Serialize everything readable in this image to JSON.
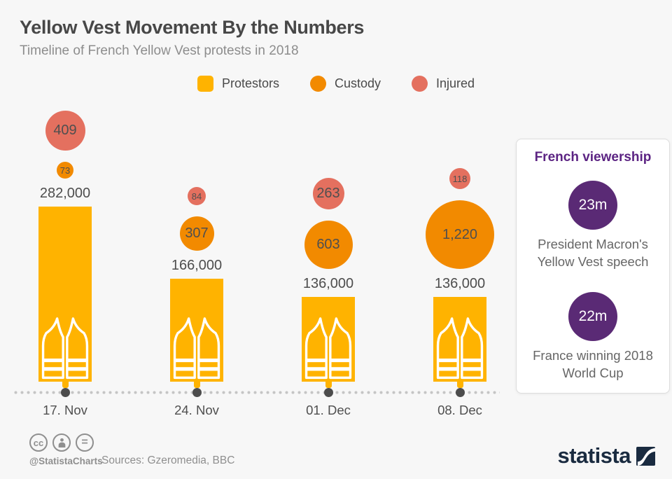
{
  "header": {
    "title": "Yellow Vest Movement By the Numbers",
    "subtitle": "Timeline of French Yellow Vest protests in 2018"
  },
  "legend": {
    "items": [
      {
        "label": "Protestors",
        "color": "#ffb300",
        "shape": "square"
      },
      {
        "label": "Custody",
        "color": "#f28a00",
        "shape": "circle"
      },
      {
        "label": "Injured",
        "color": "#e4705f",
        "shape": "circle"
      }
    ]
  },
  "chart_data": {
    "type": "bar",
    "title": "Timeline of French Yellow Vest protests in 2018",
    "categories": [
      "17. Nov",
      "24. Nov",
      "01. Dec",
      "08. Dec"
    ],
    "series": [
      {
        "name": "Protestors",
        "render": "bar",
        "color": "#ffb300",
        "values": [
          282000,
          166000,
          136000,
          136000
        ],
        "labels": [
          "282,000",
          "166,000",
          "136,000",
          "136,000"
        ]
      },
      {
        "name": "Custody",
        "render": "bubble",
        "color": "#f28a00",
        "values": [
          73,
          307,
          603,
          1220
        ],
        "labels": [
          "73",
          "307",
          "603",
          "1,220"
        ]
      },
      {
        "name": "Injured",
        "render": "bubble",
        "color": "#e4705f",
        "values": [
          409,
          84,
          263,
          118
        ],
        "labels": [
          "409",
          "84",
          "263",
          "118"
        ]
      }
    ],
    "legend_position": "top",
    "grid": false
  },
  "viewership": {
    "title": "French viewership",
    "title_color": "#5c2483",
    "circle_color": "#5a2a75",
    "items": [
      {
        "value": "23m",
        "caption": "President Macron's Yellow Vest speech"
      },
      {
        "value": "22m",
        "caption": "France winning 2018 World Cup"
      }
    ]
  },
  "footer": {
    "handle": "@StatistaCharts",
    "sources": "Sources: Gzeromedia, BBC",
    "brand": "statista"
  },
  "colors": {
    "background": "#f7f7f7",
    "bar_yellow": "#ffb300",
    "custody_orange": "#f28a00",
    "injured_salmon": "#e4705f",
    "purple": "#5a2a75",
    "text_dark": "#4d4d4d",
    "brand_navy": "#1a2b40"
  }
}
